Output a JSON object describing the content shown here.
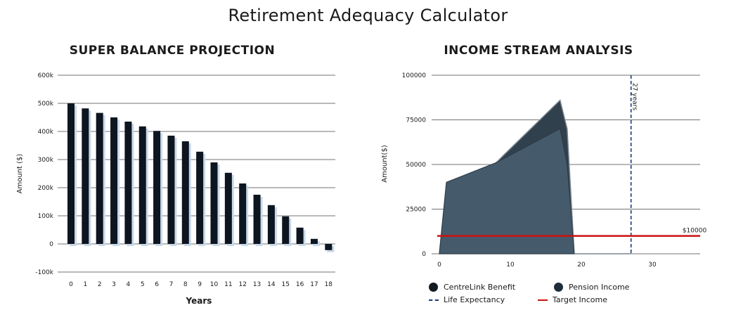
{
  "page_title": "Retirement Adequacy Calculator",
  "colors": {
    "bar": "#0d1520",
    "bar_shadow": "#c9d9ea",
    "pension": "#455a6b",
    "centrelink": "#31404d",
    "life_expectancy": "#1b3a7a",
    "target": "#cc1111"
  },
  "chart_data": [
    {
      "type": "bar",
      "title": "SUPER BALANCE PROJECTION",
      "xlabel": "Years",
      "ylabel": "Amount ($)",
      "categories": [
        "0",
        "1",
        "2",
        "3",
        "4",
        "5",
        "6",
        "7",
        "8",
        "9",
        "10",
        "11",
        "12",
        "13",
        "14",
        "15",
        "16",
        "17",
        "18"
      ],
      "values": [
        500000,
        482000,
        466000,
        450000,
        435000,
        418000,
        402000,
        385000,
        365000,
        328000,
        290000,
        253000,
        215000,
        175000,
        138000,
        98000,
        58000,
        18000,
        -22000
      ],
      "ylim": [
        -100000,
        600000
      ],
      "yticks": [
        -100000,
        0,
        100000,
        200000,
        300000,
        400000,
        500000,
        600000
      ],
      "ytick_labels": [
        "-100k",
        "0",
        "100k",
        "200k",
        "300k",
        "400k",
        "500k",
        "600k"
      ],
      "grid": true
    },
    {
      "type": "area",
      "title": "INCOME STREAM ANALYSIS",
      "xlabel": "",
      "ylabel": "Amount($)",
      "xlim": [
        0,
        37
      ],
      "ylim": [
        0,
        100000
      ],
      "xticks": [
        0,
        10,
        20,
        30
      ],
      "yticks": [
        0,
        25000,
        50000,
        75000,
        100000
      ],
      "ytick_labels": [
        "0",
        "25000",
        "50000",
        "75000",
        "100000"
      ],
      "series": [
        {
          "name": "Pension Income",
          "x": [
            0,
            1,
            8,
            17,
            18,
            19
          ],
          "y": [
            0,
            40000,
            51000,
            70000,
            50000,
            0
          ]
        },
        {
          "name": "CentreLink Benefit",
          "x": [
            0,
            1,
            8,
            9,
            17,
            18,
            19,
            20,
            27
          ],
          "y": [
            0,
            40000,
            51000,
            55000,
            86000,
            70000,
            0,
            0,
            0
          ]
        }
      ],
      "annotations": {
        "life_expectancy": {
          "x": 27,
          "label": "27 years"
        },
        "target_income": {
          "y": 10000,
          "label": "$10000"
        }
      },
      "legend": {
        "placement": "bottom",
        "items": [
          {
            "label": "CentreLink Benefit",
            "marker": "circle"
          },
          {
            "label": "Pension Income",
            "marker": "circle"
          },
          {
            "label": "Life Expectancy",
            "marker": "dashed-line"
          },
          {
            "label": "Target Income",
            "marker": "line"
          }
        ]
      },
      "grid": true
    }
  ]
}
